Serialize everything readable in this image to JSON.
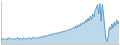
{
  "chart_data": {
    "type": "area",
    "color": "#5b9dc9",
    "values": [
      30,
      28,
      31,
      29,
      30,
      28,
      32,
      29,
      31,
      30,
      28,
      31,
      29,
      30,
      32,
      29,
      31,
      30,
      28,
      32,
      30,
      29,
      31,
      30,
      32,
      29,
      31,
      33,
      30,
      32,
      31,
      30,
      33,
      31,
      34,
      32,
      35,
      33,
      36,
      34,
      37,
      35,
      38,
      36,
      39,
      38,
      40,
      38,
      41,
      39,
      42,
      40,
      43,
      41,
      44,
      43,
      45,
      44,
      47,
      45,
      48,
      50,
      47,
      52,
      49,
      54,
      51,
      56,
      54,
      58,
      56,
      62,
      58,
      65,
      60,
      68,
      63,
      72,
      67,
      78,
      82,
      88,
      72,
      90,
      60,
      88,
      72,
      50,
      30,
      25,
      35,
      50,
      45,
      55,
      48,
      58,
      52,
      62,
      55,
      60
    ],
    "xlim": [
      0,
      99
    ],
    "ylim": [
      21,
      94
    ],
    "grid": false,
    "tick_labels": false
  }
}
